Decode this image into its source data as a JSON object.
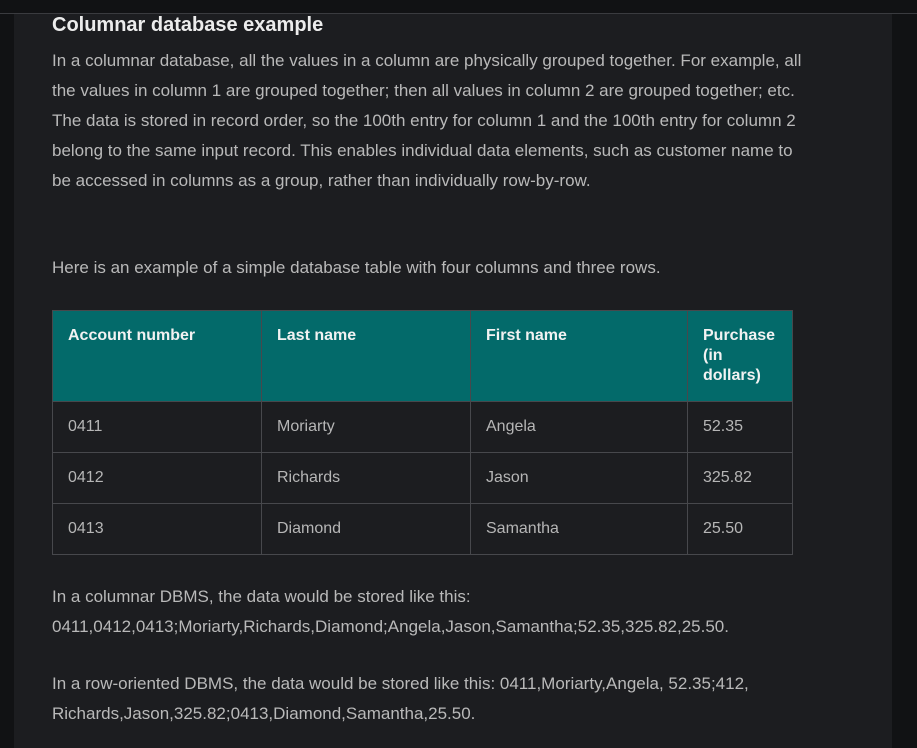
{
  "section": {
    "heading": "Columnar database example",
    "intro": "In a columnar database, all the values in a column are physically grouped together. For example, all the values in column 1 are grouped together; then all values in column 2 are grouped together; etc. The data is stored in record order, so the 100th entry for column 1 and the 100th entry for column 2 belong to the same input record. This enables individual data elements, such as customer name to be accessed in columns as a group, rather than individually row-by-row.",
    "table_intro": "Here is an example of a simple database table with four columns and three rows.",
    "columnar_text": "In a columnar DBMS, the data would be stored like this: 0411,0412,0413;Moriarty,Richards,Diamond;Angela,Jason,Samantha;52.35,325.82,25.50.",
    "row_text": "In a row-oriented DBMS, the data would be stored like this: 0411,Moriarty,Angela, 52.35;412, Richards,Jason,325.82;0413,Diamond,Samantha,25.50."
  },
  "table": {
    "headers": [
      "Account number",
      "Last name",
      "First name",
      "Purchase (in dollars)"
    ],
    "rows": [
      [
        "0411",
        "Moriarty",
        "Angela",
        "52.35"
      ],
      [
        "0412",
        "Richards",
        "Jason",
        "325.82"
      ],
      [
        "0413",
        "Diamond",
        "Samantha",
        "25.50"
      ]
    ]
  },
  "colors": {
    "header_bg": "#036a6a",
    "page_bg": "#1c1d20"
  }
}
